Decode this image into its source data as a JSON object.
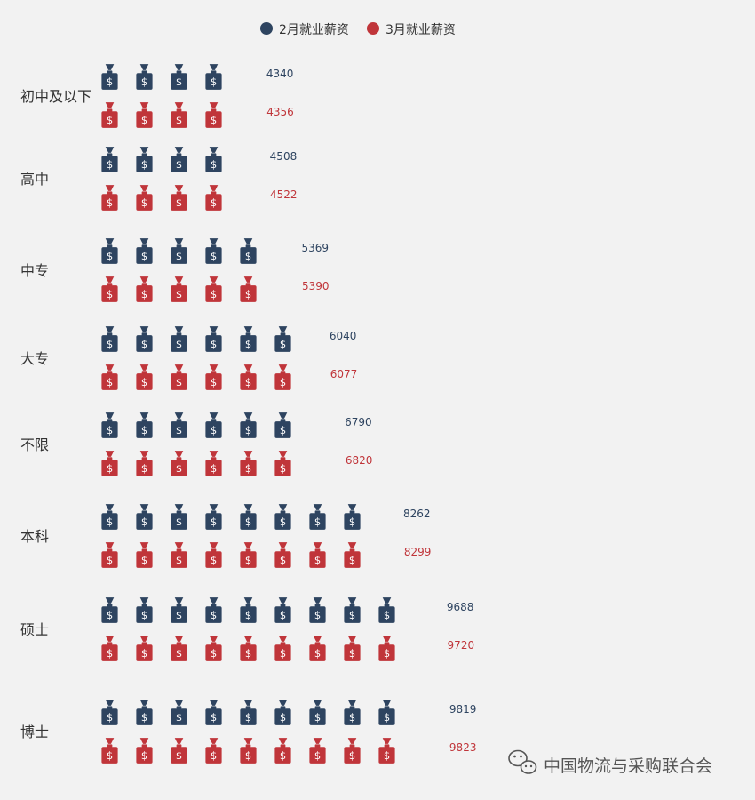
{
  "chart_data": {
    "type": "bar",
    "title": "",
    "xlabel": "",
    "ylabel": "",
    "unit_value": 1000,
    "categories": [
      "初中及以下",
      "高中",
      "中专",
      "大专",
      "不限",
      "本科",
      "硕士",
      "博士"
    ],
    "series": [
      {
        "name": "2月就业薪资",
        "color": "#2e4460",
        "values": [
          4340,
          4508,
          5369,
          6040,
          6790,
          8262,
          9688,
          9819
        ]
      },
      {
        "name": "3月就业薪资",
        "color": "#c0353a",
        "values": [
          4356,
          4522,
          5390,
          6077,
          6820,
          8299,
          9720,
          9823
        ]
      }
    ],
    "legend_position": "top-center",
    "grid": false,
    "icon": "money-bag-icon"
  },
  "watermark": {
    "text": "中国物流与采购联合会",
    "icon": "wechat-icon"
  }
}
